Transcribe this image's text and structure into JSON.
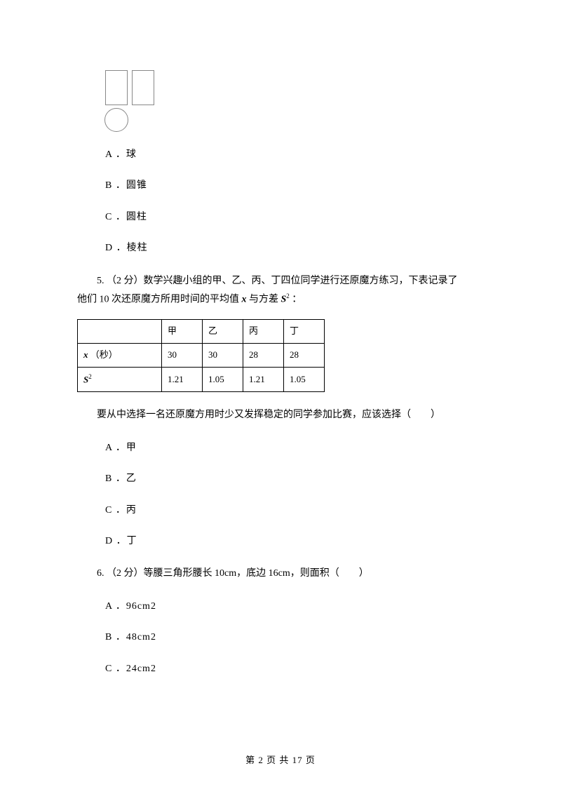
{
  "diagram": {
    "rect_border_color": "#888888",
    "circle_border_color": "#888888"
  },
  "q4": {
    "options": {
      "a": "A ．球",
      "b": "B ．圆锥",
      "c": "C ．圆柱",
      "d": "D ．棱柱"
    }
  },
  "q5": {
    "stem_line1": "5.   （2 分）数学兴趣小组的甲、乙、丙、丁四位同学进行还原魔方练习，下表记录了",
    "stem_line2": "他们 10 次还原魔方所用时间的平均值 ",
    "stem_mid": " 与方差 ",
    "stem_end": " ：",
    "x_sym": "x",
    "s_sym": "S",
    "sup2": "2",
    "table": {
      "headers": [
        "",
        "甲",
        "乙",
        "丙",
        "丁"
      ],
      "row_mean_label_pre": "",
      "row_mean_unit": "（秒）",
      "row_mean": [
        "30",
        "30",
        "28",
        "28"
      ],
      "row_var": [
        "1.21",
        "1.05",
        "1.21",
        "1.05"
      ]
    },
    "post": "要从中选择一名还原魔方用时少又发挥稳定的同学参加比赛，应该选择（　　）",
    "options": {
      "a": "A ．甲",
      "b": "B ．乙",
      "c": "C ．丙",
      "d": "D ．丁"
    }
  },
  "q6": {
    "stem": "6.   （2 分）等腰三角形腰长 10cm，底边 16cm，则面积（　　）",
    "options": {
      "a": "A ．96cm2",
      "b": "B ．48cm2",
      "c": "C ．24cm2"
    }
  },
  "footer": "第  2  页  共  17  页"
}
